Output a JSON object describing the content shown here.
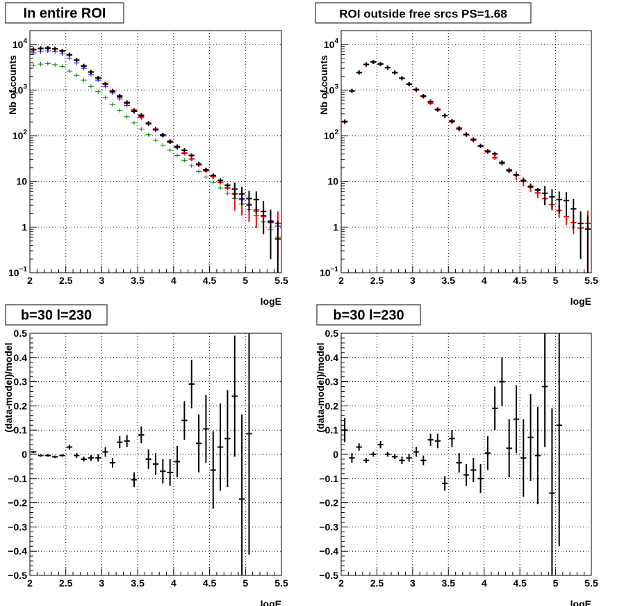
{
  "chart_data": [
    {
      "type": "errorbar",
      "title": "In entire ROI",
      "xlabel": "logE",
      "ylabel": "Nb of counts",
      "xlim": [
        2,
        5.5
      ],
      "ylim": [
        0.1,
        20000
      ],
      "yscale": "log",
      "grid": true,
      "xticks": [
        "2",
        "2.5",
        "3",
        "3.5",
        "4",
        "4.5",
        "5",
        "5.5"
      ],
      "yticks": [
        "10^-1",
        "1",
        "10",
        "10^2",
        "10^3",
        "10^4"
      ],
      "bin_width": 0.1,
      "series": [
        {
          "color": "#008000",
          "x": [
            2.05,
            2.15,
            2.25,
            2.35,
            2.45,
            2.55,
            2.65,
            2.75,
            2.85,
            2.95,
            3.05,
            3.15,
            3.25,
            3.35,
            3.45,
            3.55,
            3.65,
            3.75,
            3.85,
            3.95,
            4.05,
            4.15,
            4.25,
            4.35,
            4.45,
            4.55,
            4.65,
            4.75,
            4.85,
            4.95,
            5.05,
            5.15,
            5.25,
            5.35,
            5.45
          ],
          "y": [
            3500,
            3700,
            3800,
            3600,
            3300,
            2600,
            2100,
            1650,
            1200,
            920,
            680,
            480,
            360,
            260,
            190,
            140,
            105,
            80,
            62,
            48,
            37,
            29,
            22,
            16.5,
            12.5,
            9.5,
            7.2,
            5.5,
            4.2,
            3.2,
            2.4,
            1.8,
            1.3,
            0.9,
            0.6
          ],
          "err": [
            0,
            0,
            0,
            0,
            0,
            0,
            0,
            0,
            0,
            0,
            0,
            0,
            0,
            0,
            0,
            0,
            0,
            0,
            0,
            0,
            0,
            0,
            0,
            0,
            0,
            0,
            0,
            0,
            0,
            0,
            0,
            0.6,
            0.5,
            0.4,
            0.3
          ]
        },
        {
          "color": "#0000ff",
          "x": [
            2.05,
            2.15,
            2.25,
            2.35,
            2.45,
            2.55,
            2.65,
            2.75,
            2.85,
            2.95,
            3.05,
            3.15,
            3.25,
            3.35,
            3.45,
            3.55,
            3.65,
            3.75,
            3.85,
            3.95,
            4.05,
            4.15,
            4.25,
            4.35,
            4.45,
            4.55,
            4.65,
            4.75,
            4.85,
            4.95,
            5.05,
            5.15,
            5.25,
            5.35,
            5.45
          ],
          "y": [
            6500,
            7000,
            7200,
            6900,
            6200,
            5000,
            3900,
            3000,
            2200,
            1650,
            1200,
            860,
            640,
            460,
            335,
            245,
            180,
            132,
            98,
            73,
            54,
            41,
            30.5,
            23,
            17,
            12.8,
            9.6,
            7.3,
            5.5,
            4.2,
            3.2,
            2.4,
            1.8,
            1.4,
            1.05
          ],
          "err": [
            0,
            0,
            0,
            0,
            0,
            0,
            0,
            0,
            0,
            0,
            0,
            0,
            0,
            0,
            0,
            0,
            0,
            0,
            0,
            0,
            0,
            0,
            0,
            0,
            0,
            0,
            0,
            0,
            0,
            0,
            0,
            0,
            0,
            0,
            0
          ]
        },
        {
          "color": "#ff0000",
          "x": [
            2.05,
            2.15,
            2.25,
            2.35,
            2.45,
            2.55,
            2.65,
            2.75,
            2.85,
            2.95,
            3.05,
            3.15,
            3.25,
            3.35,
            3.45,
            3.55,
            3.65,
            3.75,
            3.85,
            3.95,
            4.05,
            4.15,
            4.25,
            4.35,
            4.45,
            4.55,
            4.65,
            4.75,
            4.85,
            4.95,
            5.05,
            5.15,
            5.25,
            5.35,
            5.45
          ],
          "y": [
            7600,
            8100,
            8300,
            8000,
            7200,
            5800,
            4500,
            3400,
            2500,
            1850,
            1350,
            960,
            700,
            505,
            365,
            262,
            190,
            140,
            103,
            76,
            56,
            42,
            31,
            23,
            17,
            12.7,
            9.5,
            7.1,
            5.3,
            4.0,
            3.0,
            2.25,
            1.7,
            1.25,
            1.2
          ],
          "err": [
            0,
            0,
            0,
            0,
            0,
            0,
            0,
            0,
            0,
            0,
            0,
            0,
            0,
            0,
            0,
            0,
            0,
            0,
            0,
            0,
            0,
            0,
            0,
            0,
            0,
            0,
            0,
            0,
            3,
            2.2,
            1.7,
            1.3,
            1.0,
            0.9,
            1.0
          ]
        },
        {
          "color": "#000000",
          "x": [
            2.05,
            2.15,
            2.25,
            2.35,
            2.45,
            2.55,
            2.65,
            2.75,
            2.85,
            2.95,
            3.05,
            3.15,
            3.25,
            3.35,
            3.45,
            3.55,
            3.65,
            3.75,
            3.85,
            3.95,
            4.05,
            4.15,
            4.25,
            4.35,
            4.45,
            4.55,
            4.65,
            4.75,
            4.85,
            4.95,
            5.05,
            5.15,
            5.25,
            5.35,
            5.45
          ],
          "y": [
            7700,
            8150,
            8250,
            7950,
            7150,
            5950,
            4530,
            3350,
            2480,
            1830,
            1370,
            930,
            740,
            535,
            345,
            281,
            185,
            137,
            104,
            73,
            58,
            48,
            37,
            24,
            18,
            13.5,
            10.5,
            8.2,
            6.8,
            5.3,
            4.2,
            4.0,
            2.2,
            1.3,
            0.55
          ],
          "err": [
            0,
            0,
            0,
            0,
            0,
            0,
            0,
            0,
            0,
            0,
            0,
            0,
            0,
            0,
            0,
            0,
            0,
            0,
            0,
            0,
            0,
            0,
            0,
            0,
            0,
            0,
            0,
            0,
            2.6,
            2.3,
            2.0,
            2.0,
            1.5,
            1.1,
            0.8
          ]
        }
      ]
    },
    {
      "type": "errorbar",
      "title": "ROI outside free srcs PS=1.68",
      "xlabel": "logE",
      "ylabel": "Nb of counts",
      "xlim": [
        2,
        5.5
      ],
      "ylim": [
        0.1,
        20000
      ],
      "yscale": "log",
      "grid": true,
      "xticks": [
        "2",
        "2.5",
        "3",
        "3.5",
        "4",
        "4.5",
        "5",
        "5.5"
      ],
      "yticks": [
        "10^-1",
        "1",
        "10",
        "10^2",
        "10^3",
        "10^4"
      ],
      "bin_width": 0.1,
      "series": [
        {
          "color": "#ff0000",
          "x": [
            2.05,
            2.15,
            2.25,
            2.35,
            2.45,
            2.55,
            2.65,
            2.75,
            2.85,
            2.95,
            3.05,
            3.15,
            3.25,
            3.35,
            3.45,
            3.55,
            3.65,
            3.75,
            3.85,
            3.95,
            4.05,
            4.15,
            4.25,
            4.35,
            4.45,
            4.55,
            4.65,
            4.75,
            4.85,
            4.95,
            5.05,
            5.15,
            5.25,
            5.35,
            5.45
          ],
          "y": [
            200,
            950,
            2400,
            3600,
            4100,
            3700,
            3100,
            2400,
            1800,
            1350,
            1000,
            720,
            520,
            380,
            275,
            200,
            148,
            108,
            80,
            59,
            44,
            33,
            24.5,
            18,
            13.5,
            10,
            7.5,
            5.6,
            4.2,
            3.1,
            2.3,
            1.7,
            1.25,
            0.95,
            1.2
          ],
          "err": [
            0,
            0,
            0,
            0,
            0,
            0,
            0,
            0,
            0,
            0,
            0,
            0,
            0,
            0,
            0,
            0,
            0,
            0,
            0,
            0,
            0,
            0,
            0,
            0,
            3,
            2.2,
            1.6,
            1.3,
            1.0,
            0.8,
            0.7,
            0.6,
            0.55,
            0.5,
            1.1
          ]
        },
        {
          "color": "#000000",
          "x": [
            2.05,
            2.15,
            2.25,
            2.35,
            2.45,
            2.55,
            2.65,
            2.75,
            2.85,
            2.95,
            3.05,
            3.15,
            3.25,
            3.35,
            3.45,
            3.55,
            3.65,
            3.75,
            3.85,
            3.95,
            4.05,
            4.15,
            4.25,
            4.35,
            4.45,
            4.55,
            4.65,
            4.75,
            4.85,
            4.95,
            5.05,
            5.15,
            5.25,
            5.35,
            5.45
          ],
          "y": [
            205,
            960,
            2420,
            3650,
            4120,
            3720,
            3090,
            2410,
            1820,
            1340,
            1030,
            740,
            560,
            370,
            275,
            210,
            140,
            105,
            83,
            60,
            46,
            40,
            26,
            17,
            14,
            10.5,
            7.8,
            6.5,
            5.5,
            4.6,
            4.0,
            3.8,
            2.5,
            1.2,
            0.9
          ],
          "err": [
            0,
            0,
            0,
            0,
            0,
            0,
            0,
            0,
            0,
            0,
            0,
            0,
            0,
            0,
            0,
            0,
            0,
            0,
            0,
            0,
            0,
            0,
            0,
            0,
            0,
            0,
            0,
            0,
            2.5,
            2.1,
            2.0,
            2.0,
            1.6,
            1.0,
            0.9
          ]
        }
      ]
    },
    {
      "type": "errorbar",
      "title": "b=30 l=230",
      "xlabel": "logE",
      "ylabel": "(data-model)/model",
      "xlim": [
        2,
        5.5
      ],
      "ylim": [
        -0.5,
        0.5
      ],
      "grid": true,
      "xticks": [
        "2",
        "2.5",
        "3",
        "3.5",
        "4",
        "4.5",
        "5",
        "5.5"
      ],
      "yticks": [
        "−0.5",
        "−0.4",
        "−0.3",
        "−0.2",
        "−0.1",
        "0",
        "0.1",
        "0.2",
        "0.3",
        "0.4",
        "0.5"
      ],
      "bin_width": 0.1,
      "series": [
        {
          "color": "#000000",
          "x": [
            2.05,
            2.15,
            2.25,
            2.35,
            2.45,
            2.55,
            2.65,
            2.75,
            2.85,
            2.95,
            3.05,
            3.15,
            3.25,
            3.35,
            3.45,
            3.55,
            3.65,
            3.75,
            3.85,
            3.95,
            4.05,
            4.15,
            4.25,
            4.35,
            4.45,
            4.55,
            4.65,
            4.75,
            4.85,
            4.95,
            5.05
          ],
          "y": [
            0.01,
            -0.005,
            -0.005,
            -0.01,
            -0.005,
            0.03,
            -0.005,
            -0.02,
            -0.015,
            -0.015,
            0.01,
            -0.035,
            0.05,
            0.055,
            -0.105,
            0.08,
            -0.02,
            -0.04,
            -0.07,
            -0.075,
            -0.03,
            0.14,
            0.29,
            0.045,
            0.105,
            -0.065,
            0.03,
            0.065,
            0.24,
            -0.185,
            0.085
          ],
          "err": [
            0.005,
            0.005,
            0.005,
            0.005,
            0.005,
            0.01,
            0.01,
            0.01,
            0.012,
            0.015,
            0.02,
            0.02,
            0.025,
            0.025,
            0.03,
            0.035,
            0.04,
            0.045,
            0.05,
            0.055,
            0.065,
            0.08,
            0.1,
            0.12,
            0.14,
            0.16,
            0.18,
            0.2,
            0.25,
            0.35,
            0.5
          ]
        }
      ]
    },
    {
      "type": "errorbar",
      "title": "b=30 l=230",
      "xlabel": "logE",
      "ylabel": "(data-model)/model",
      "xlim": [
        2,
        5.5
      ],
      "ylim": [
        -0.5,
        0.5
      ],
      "grid": true,
      "xticks": [
        "2",
        "2.5",
        "3",
        "3.5",
        "4",
        "4.5",
        "5",
        "5.5"
      ],
      "yticks": [
        "−0.5",
        "−0.4",
        "−0.3",
        "−0.2",
        "−0.1",
        "0",
        "0.1",
        "0.2",
        "0.3",
        "0.4",
        "0.5"
      ],
      "bin_width": 0.1,
      "series": [
        {
          "color": "#000000",
          "x": [
            2.05,
            2.15,
            2.25,
            2.35,
            2.45,
            2.55,
            2.65,
            2.75,
            2.85,
            2.95,
            3.05,
            3.15,
            3.25,
            3.35,
            3.45,
            3.55,
            3.65,
            3.75,
            3.85,
            3.95,
            4.05,
            4.15,
            4.25,
            4.35,
            4.45,
            4.55,
            4.65,
            4.75,
            4.85,
            4.95,
            5.05
          ],
          "y": [
            0.1,
            -0.015,
            0.03,
            -0.025,
            0.0,
            0.04,
            0.0,
            -0.01,
            -0.025,
            -0.015,
            0.01,
            -0.025,
            0.06,
            0.055,
            -0.12,
            0.065,
            -0.035,
            -0.085,
            -0.065,
            -0.1,
            0.005,
            0.19,
            0.3,
            0.025,
            0.145,
            -0.015,
            0.07,
            -0.005,
            0.28,
            -0.16,
            0.12
          ],
          "err": [
            0.05,
            0.02,
            0.015,
            0.01,
            0.01,
            0.015,
            0.01,
            0.01,
            0.015,
            0.015,
            0.02,
            0.02,
            0.025,
            0.03,
            0.03,
            0.035,
            0.04,
            0.045,
            0.05,
            0.06,
            0.07,
            0.09,
            0.1,
            0.12,
            0.14,
            0.16,
            0.18,
            0.2,
            0.25,
            0.35,
            0.5
          ]
        }
      ]
    }
  ]
}
